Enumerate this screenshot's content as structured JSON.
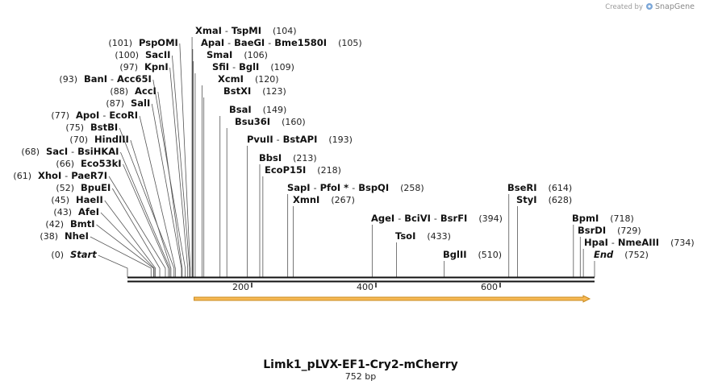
{
  "credit": {
    "text": "Created by",
    "brand": "SnapGene"
  },
  "sequence": {
    "name": "Limk1_pLVX-EF1-Cry2-mCherry",
    "length_label": "752 bp",
    "length": 752
  },
  "axis_ticks": [
    {
      "value": 200,
      "label": "200"
    },
    {
      "value": 400,
      "label": "400"
    },
    {
      "value": 600,
      "label": "600"
    }
  ],
  "feature_arrow": {
    "start": 115,
    "end": 752,
    "color": "#f5a623"
  },
  "colors": {
    "backbone": "#111111",
    "leader": "#444444",
    "feature_fill": "#f7b955",
    "feature_stroke": "#c98a1d"
  },
  "sites": [
    {
      "id": "start",
      "pos": 0,
      "pos_label": "(0)",
      "parts": [
        "Start"
      ],
      "italic": true,
      "pos_side": "left"
    },
    {
      "id": "nhei",
      "pos": 38,
      "pos_label": "(38)",
      "parts": [
        "NheI"
      ],
      "pos_side": "left"
    },
    {
      "id": "bmti",
      "pos": 42,
      "pos_label": "(42)",
      "parts": [
        "BmtI"
      ],
      "pos_side": "left"
    },
    {
      "id": "afei",
      "pos": 43,
      "pos_label": "(43)",
      "parts": [
        "AfeI"
      ],
      "pos_side": "left"
    },
    {
      "id": "haeii",
      "pos": 45,
      "pos_label": "(45)",
      "parts": [
        "HaeII"
      ],
      "pos_side": "left"
    },
    {
      "id": "bpuei",
      "pos": 52,
      "pos_label": "(52)",
      "parts": [
        "BpuEI"
      ],
      "pos_side": "left"
    },
    {
      "id": "xhoi",
      "pos": 61,
      "pos_label": "(61)",
      "parts": [
        "XhoI",
        "PaeR7I"
      ],
      "pos_side": "left"
    },
    {
      "id": "eco53ki",
      "pos": 66,
      "pos_label": "(66)",
      "parts": [
        "Eco53kI"
      ],
      "pos_side": "left"
    },
    {
      "id": "saci",
      "pos": 68,
      "pos_label": "(68)",
      "parts": [
        "SacI",
        "BsiHKAI"
      ],
      "pos_side": "left"
    },
    {
      "id": "hindiii",
      "pos": 70,
      "pos_label": "(70)",
      "parts": [
        "HindIII"
      ],
      "pos_side": "left"
    },
    {
      "id": "bstbi",
      "pos": 75,
      "pos_label": "(75)",
      "parts": [
        "BstBI"
      ],
      "pos_side": "left"
    },
    {
      "id": "apoi",
      "pos": 77,
      "pos_label": "(77)",
      "parts": [
        "ApoI",
        "EcoRI"
      ],
      "pos_side": "left"
    },
    {
      "id": "sali",
      "pos": 87,
      "pos_label": "(87)",
      "parts": [
        "SalI"
      ],
      "pos_side": "left"
    },
    {
      "id": "acci",
      "pos": 88,
      "pos_label": "(88)",
      "parts": [
        "AccI"
      ],
      "pos_side": "left"
    },
    {
      "id": "bani",
      "pos": 93,
      "pos_label": "(93)",
      "parts": [
        "BanI",
        "Acc65I"
      ],
      "pos_side": "left"
    },
    {
      "id": "kpni",
      "pos": 97,
      "pos_label": "(97)",
      "parts": [
        "KpnI"
      ],
      "pos_side": "left"
    },
    {
      "id": "sacii",
      "pos": 100,
      "pos_label": "(100)",
      "parts": [
        "SacII"
      ],
      "pos_side": "left"
    },
    {
      "id": "pspomi",
      "pos": 101,
      "pos_label": "(101)",
      "parts": [
        "PspOMI"
      ],
      "pos_side": "left"
    },
    {
      "id": "xmai",
      "pos": 104,
      "pos_label": "(104)",
      "parts": [
        "XmaI",
        "TspMI"
      ],
      "pos_side": "right"
    },
    {
      "id": "apai",
      "pos": 105,
      "pos_label": "(105)",
      "parts": [
        "ApaI",
        "BaeGI",
        "Bme1580I"
      ],
      "pos_side": "right"
    },
    {
      "id": "smai",
      "pos": 106,
      "pos_label": "(106)",
      "parts": [
        "SmaI"
      ],
      "pos_side": "right"
    },
    {
      "id": "sfii",
      "pos": 109,
      "pos_label": "(109)",
      "parts": [
        "SfiI",
        "BglI"
      ],
      "pos_side": "right"
    },
    {
      "id": "xcmi",
      "pos": 120,
      "pos_label": "(120)",
      "parts": [
        "XcmI"
      ],
      "pos_side": "right"
    },
    {
      "id": "bstxi",
      "pos": 123,
      "pos_label": "(123)",
      "parts": [
        "BstXI"
      ],
      "pos_side": "right"
    },
    {
      "id": "bsai",
      "pos": 149,
      "pos_label": "(149)",
      "parts": [
        "BsaI"
      ],
      "pos_side": "right"
    },
    {
      "id": "bsu36i",
      "pos": 160,
      "pos_label": "(160)",
      "parts": [
        "Bsu36I"
      ],
      "pos_side": "right"
    },
    {
      "id": "pvuii",
      "pos": 193,
      "pos_label": "(193)",
      "parts": [
        "PvuII",
        "BstAPI"
      ],
      "pos_side": "right"
    },
    {
      "id": "bbsi",
      "pos": 213,
      "pos_label": "(213)",
      "parts": [
        "BbsI"
      ],
      "pos_side": "right"
    },
    {
      "id": "ecop15i",
      "pos": 218,
      "pos_label": "(218)",
      "parts": [
        "EcoP15I"
      ],
      "pos_side": "right"
    },
    {
      "id": "sapi",
      "pos": 258,
      "pos_label": "(258)",
      "parts": [
        "SapI",
        "PfoI *",
        "BspQI"
      ],
      "pos_side": "right"
    },
    {
      "id": "xmni",
      "pos": 267,
      "pos_label": "(267)",
      "parts": [
        "XmnI"
      ],
      "pos_side": "right"
    },
    {
      "id": "agei",
      "pos": 394,
      "pos_label": "(394)",
      "parts": [
        "AgeI",
        "BciVI",
        "BsrFI"
      ],
      "pos_side": "right"
    },
    {
      "id": "tsoi",
      "pos": 433,
      "pos_label": "(433)",
      "parts": [
        "TsoI"
      ],
      "pos_side": "right"
    },
    {
      "id": "bglii",
      "pos": 510,
      "pos_label": "(510)",
      "parts": [
        "BglII"
      ],
      "pos_side": "right"
    },
    {
      "id": "bseri",
      "pos": 614,
      "pos_label": "(614)",
      "parts": [
        "BseRI"
      ],
      "pos_side": "right"
    },
    {
      "id": "styi",
      "pos": 628,
      "pos_label": "(628)",
      "parts": [
        "StyI"
      ],
      "pos_side": "right"
    },
    {
      "id": "bpmi",
      "pos": 718,
      "pos_label": "(718)",
      "parts": [
        "BpmI"
      ],
      "pos_side": "right"
    },
    {
      "id": "bsrdi",
      "pos": 729,
      "pos_label": "(729)",
      "parts": [
        "BsrDI"
      ],
      "pos_side": "right"
    },
    {
      "id": "hpai",
      "pos": 734,
      "pos_label": "(734)",
      "parts": [
        "HpaI",
        "NmeAIII"
      ],
      "pos_side": "right"
    },
    {
      "id": "end",
      "pos": 752,
      "pos_label": "(752)",
      "parts": [
        "End"
      ],
      "italic": true,
      "pos_side": "right"
    }
  ]
}
